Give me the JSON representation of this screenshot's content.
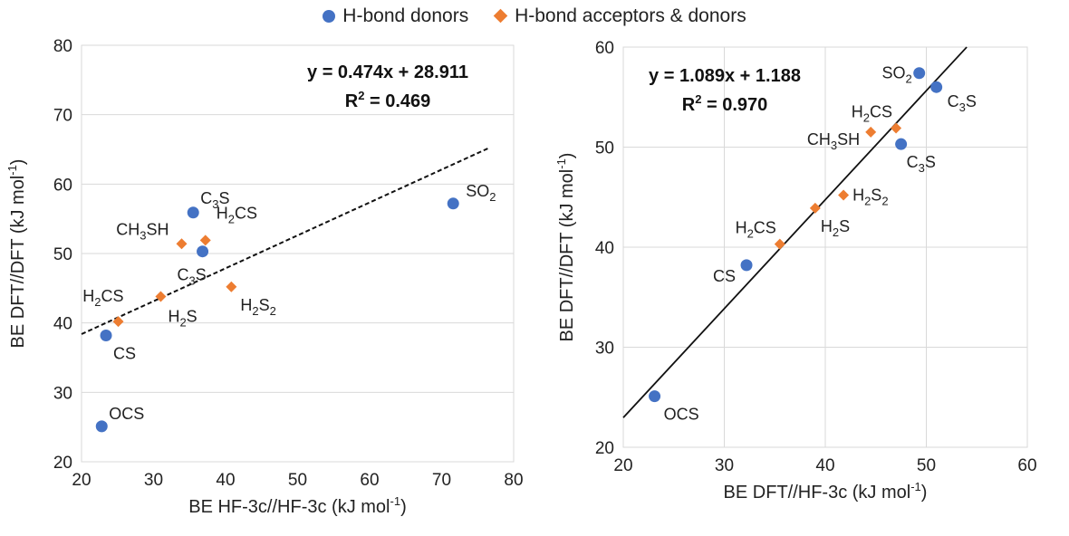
{
  "legend": {
    "donors": "H-bond donors",
    "acceptors": "H-bond acceptors & donors"
  },
  "colors": {
    "donors": "#4472C4",
    "acceptors": "#ED7D31",
    "grid": "#D9D9D9",
    "text": "#222222"
  },
  "chart_data": [
    {
      "type": "scatter",
      "title": "",
      "xlabel": "BE HF-3c//HF-3c (kJ mol-1)",
      "ylabel": "BE DFT//DFT (kJ mol-1)",
      "xlim": [
        20,
        80
      ],
      "ylim": [
        20,
        80
      ],
      "xticks": [
        20,
        30,
        40,
        50,
        60,
        70,
        80
      ],
      "yticks": [
        20,
        30,
        40,
        50,
        60,
        70,
        80
      ],
      "grid": "horizontal",
      "equation": "y = 0.474x + 28.911",
      "r2": "R² = 0.469",
      "trendline": {
        "slope": 0.474,
        "intercept": 28.911,
        "x_range": [
          20,
          76.5
        ],
        "style": "dashed"
      },
      "series": [
        {
          "name": "H-bond donors",
          "marker": "circle",
          "points": [
            {
              "label": "C3S",
              "x": 35.5,
              "y": 55.9
            },
            {
              "label": "C3S",
              "x": 36.8,
              "y": 50.3
            },
            {
              "label": "SO2",
              "x": 71.6,
              "y": 57.2
            },
            {
              "label": "CS",
              "x": 23.4,
              "y": 38.2
            },
            {
              "label": "OCS",
              "x": 22.8,
              "y": 25.1
            }
          ]
        },
        {
          "name": "H-bond acceptors & donors",
          "marker": "diamond",
          "points": [
            {
              "label": "CH3SH",
              "x": 33.9,
              "y": 51.4
            },
            {
              "label": "H2CS",
              "x": 37.2,
              "y": 51.9
            },
            {
              "label": "H2S2",
              "x": 40.8,
              "y": 45.2
            },
            {
              "label": "H2S",
              "x": 31.0,
              "y": 43.8
            },
            {
              "label": "H2CS",
              "x": 25.1,
              "y": 40.2
            }
          ]
        }
      ]
    },
    {
      "type": "scatter",
      "title": "",
      "xlabel": "BE DFT//HF-3c (kJ mol-1)",
      "ylabel": "BE DFT//DFT (kJ mol-1)",
      "xlim": [
        20,
        60
      ],
      "ylim": [
        20,
        60
      ],
      "xticks": [
        20,
        30,
        40,
        50,
        60
      ],
      "yticks": [
        20,
        30,
        40,
        50,
        60
      ],
      "grid": "both",
      "equation": "y = 1.089x + 1.188",
      "r2": "R² = 0.970",
      "trendline": {
        "slope": 1.089,
        "intercept": 1.188,
        "x_range": [
          20,
          54.0
        ],
        "style": "solid"
      },
      "series": [
        {
          "name": "H-bond donors",
          "marker": "circle",
          "points": [
            {
              "label": "SO2",
              "x": 49.3,
              "y": 57.4
            },
            {
              "label": "C3S",
              "x": 51.0,
              "y": 56.0
            },
            {
              "label": "C3S",
              "x": 47.5,
              "y": 50.3
            },
            {
              "label": "CS",
              "x": 32.2,
              "y": 38.2
            },
            {
              "label": "OCS",
              "x": 23.1,
              "y": 25.1
            }
          ]
        },
        {
          "name": "H-bond acceptors & donors",
          "marker": "diamond",
          "points": [
            {
              "label": "H2CS",
              "x": 47.0,
              "y": 51.9
            },
            {
              "label": "CH3SH",
              "x": 44.5,
              "y": 51.5
            },
            {
              "label": "H2S2",
              "x": 41.8,
              "y": 45.2
            },
            {
              "label": "H2S",
              "x": 39.0,
              "y": 43.9
            },
            {
              "label": "H2CS",
              "x": 35.5,
              "y": 40.3
            }
          ]
        }
      ]
    }
  ]
}
